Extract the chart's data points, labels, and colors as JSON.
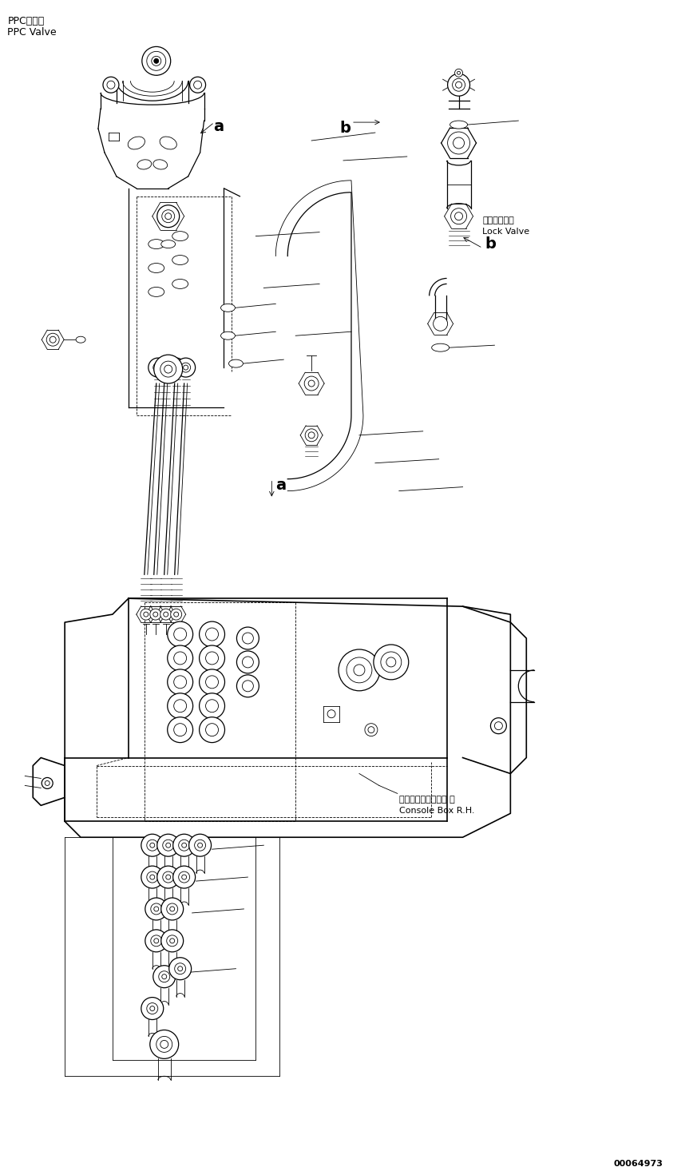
{
  "doc_number": "00064973",
  "background_color": "#ffffff",
  "line_color": "#000000",
  "labels": {
    "ppc_valve_jp": "PPCバルブ",
    "ppc_valve_en": "PPC Valve",
    "lock_valve_jp": "ロックバルブ",
    "lock_valve_en": "Lock Valve",
    "console_box_jp": "コンソールボックス 右",
    "console_box_en": "Console Box R.H."
  },
  "figsize": [
    8.73,
    14.66
  ],
  "dpi": 100
}
